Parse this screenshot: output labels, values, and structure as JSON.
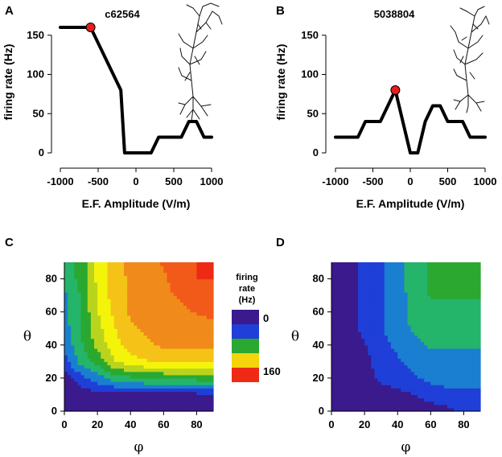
{
  "colors": {
    "line": "#000000",
    "marker": "#e61e1e",
    "heat_scale": [
      "#3a1a8c",
      "#1f3fd8",
      "#1a7fd0",
      "#24b46a",
      "#2aa830",
      "#b9d41c",
      "#f4f40a",
      "#f5c318",
      "#f08a1a",
      "#f25a1a",
      "#ee2a14"
    ]
  },
  "panels": {
    "A": {
      "label": "A",
      "cell_id": "c62564"
    },
    "B": {
      "label": "B",
      "cell_id": "5038804"
    },
    "C": {
      "label": "C"
    },
    "D": {
      "label": "D"
    }
  },
  "legend": {
    "title_lines": [
      "firing",
      "rate",
      "(Hz)"
    ],
    "min_label": "0",
    "max_label": "160",
    "swatches": [
      "#3a1a8c",
      "#1f3fd8",
      "#2aa830",
      "#f4d40a",
      "#ee2a14"
    ]
  },
  "chart_data": [
    {
      "type": "line",
      "panel": "A",
      "title": "c62564",
      "xlabel": "E.F. Amplitude (V/m)",
      "ylabel": "firing rate (Hz)",
      "xlim": [
        -1000,
        1000
      ],
      "ylim": [
        0,
        160
      ],
      "xticks": [
        -1000,
        -500,
        0,
        500,
        1000
      ],
      "xtick_labels": [
        "-1000",
        "-500",
        "0",
        "500",
        "1000"
      ],
      "yticks": [
        0,
        50,
        100,
        150
      ],
      "ytick_labels": [
        "0",
        "50",
        "100",
        "150"
      ],
      "x": [
        -1000,
        -600,
        -200,
        -150,
        0,
        200,
        300,
        400,
        600,
        700,
        800,
        900,
        1000
      ],
      "y": [
        160,
        160,
        80,
        0,
        0,
        0,
        20,
        20,
        20,
        40,
        40,
        20,
        20
      ],
      "highlight": {
        "x": -600,
        "y": 160
      }
    },
    {
      "type": "line",
      "panel": "B",
      "title": "5038804",
      "xlabel": "E.F. Amplitude (V/m)",
      "ylabel": "firing rate (Hz)",
      "xlim": [
        -1000,
        1000
      ],
      "ylim": [
        0,
        160
      ],
      "xticks": [
        -1000,
        -500,
        0,
        500,
        1000
      ],
      "xtick_labels": [
        "-1000",
        "-500",
        "0",
        "500",
        "1000"
      ],
      "yticks": [
        0,
        50,
        100,
        150
      ],
      "ytick_labels": [
        "0",
        "50",
        "100",
        "150"
      ],
      "x": [
        -1000,
        -800,
        -700,
        -600,
        -400,
        -200,
        0,
        100,
        200,
        300,
        400,
        500,
        600,
        700,
        800,
        900,
        1000
      ],
      "y": [
        20,
        20,
        20,
        40,
        40,
        80,
        0,
        0,
        40,
        60,
        60,
        40,
        40,
        40,
        20,
        20,
        20
      ],
      "highlight": {
        "x": -200,
        "y": 80
      }
    },
    {
      "type": "heatmap",
      "panel": "C",
      "xlabel": "φ",
      "ylabel": "θ",
      "xlim": [
        0,
        90
      ],
      "ylim": [
        0,
        90
      ],
      "xticks": [
        0,
        20,
        40,
        60,
        80
      ],
      "xtick_labels": [
        "0",
        "20",
        "40",
        "60",
        "80"
      ],
      "yticks": [
        0,
        20,
        40,
        60,
        80
      ],
      "ytick_labels": [
        "0",
        "20",
        "40",
        "60",
        "80"
      ],
      "zlabel": "firing rate (Hz)",
      "zlim": [
        0,
        160
      ],
      "grid_x": [
        0,
        10,
        20,
        30,
        40,
        50,
        60,
        70,
        80,
        90
      ],
      "grid_y": [
        0,
        10,
        20,
        30,
        40,
        50,
        60,
        70,
        80,
        90
      ],
      "z": [
        [
          0,
          0,
          0,
          0,
          0,
          0,
          0,
          0,
          0,
          0
        ],
        [
          0,
          5,
          10,
          10,
          10,
          10,
          10,
          10,
          10,
          10
        ],
        [
          5,
          25,
          40,
          55,
          60,
          65,
          65,
          65,
          70,
          70
        ],
        [
          25,
          55,
          70,
          95,
          105,
          110,
          115,
          115,
          115,
          115
        ],
        [
          35,
          60,
          85,
          105,
          120,
          125,
          130,
          130,
          130,
          130
        ],
        [
          40,
          65,
          90,
          110,
          125,
          130,
          135,
          135,
          135,
          135
        ],
        [
          45,
          65,
          95,
          115,
          130,
          135,
          140,
          140,
          145,
          150
        ],
        [
          45,
          65,
          95,
          120,
          130,
          135,
          140,
          145,
          155,
          160
        ],
        [
          50,
          70,
          100,
          120,
          130,
          135,
          140,
          155,
          160,
          160
        ],
        [
          50,
          70,
          100,
          120,
          135,
          140,
          145,
          160,
          160,
          160
        ]
      ]
    },
    {
      "type": "heatmap",
      "panel": "D",
      "xlabel": "φ",
      "ylabel": "θ",
      "xlim": [
        0,
        90
      ],
      "ylim": [
        0,
        90
      ],
      "xticks": [
        0,
        20,
        40,
        60,
        80
      ],
      "xtick_labels": [
        "0",
        "20",
        "40",
        "60",
        "80"
      ],
      "yticks": [
        0,
        20,
        40,
        60,
        80
      ],
      "ytick_labels": [
        "0",
        "20",
        "40",
        "60",
        "80"
      ],
      "zlabel": "firing rate (Hz)",
      "zlim": [
        0,
        160
      ],
      "grid_x": [
        0,
        10,
        20,
        30,
        40,
        50,
        60,
        70,
        80,
        90
      ],
      "grid_y": [
        0,
        10,
        20,
        30,
        40,
        50,
        60,
        70,
        80,
        90
      ],
      "z": [
        [
          0,
          0,
          0,
          0,
          0,
          2,
          5,
          10,
          20,
          25
        ],
        [
          0,
          0,
          0,
          5,
          10,
          15,
          25,
          30,
          30,
          30
        ],
        [
          0,
          0,
          5,
          20,
          25,
          30,
          35,
          35,
          35,
          35
        ],
        [
          0,
          0,
          10,
          25,
          30,
          35,
          40,
          40,
          40,
          40
        ],
        [
          0,
          5,
          15,
          28,
          35,
          40,
          50,
          50,
          50,
          50
        ],
        [
          0,
          10,
          20,
          30,
          40,
          50,
          60,
          60,
          60,
          60
        ],
        [
          0,
          10,
          20,
          30,
          40,
          55,
          60,
          60,
          60,
          60
        ],
        [
          0,
          10,
          20,
          30,
          40,
          55,
          65,
          65,
          65,
          65
        ],
        [
          0,
          10,
          20,
          30,
          40,
          60,
          65,
          65,
          65,
          65
        ],
        [
          0,
          10,
          20,
          30,
          40,
          60,
          65,
          65,
          65,
          65
        ]
      ]
    }
  ]
}
